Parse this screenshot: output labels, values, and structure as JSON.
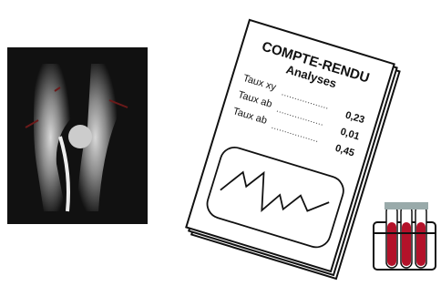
{
  "document": {
    "title": "COMPTE-RENDU",
    "subtitle": "Analyses",
    "rows": [
      [
        "Taux xy",
        "0,23"
      ],
      [
        "Taux ab",
        "0,01"
      ],
      [
        "Taux ab",
        "0,45"
      ]
    ]
  }
}
